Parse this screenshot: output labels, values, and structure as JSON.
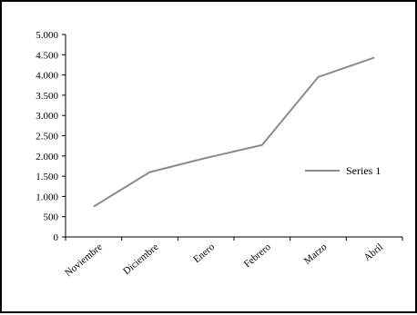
{
  "chart_data": {
    "type": "line",
    "categories": [
      "Noviembre",
      "Diciembre",
      "Enero",
      "Febrero",
      "Marzo",
      "Abril"
    ],
    "series": [
      {
        "name": "Series 1",
        "values": [
          750,
          1600,
          1950,
          2270,
          3950,
          4430
        ],
        "color": "#8c8c8c"
      }
    ],
    "ylim": [
      0,
      5000
    ],
    "yticks": [
      0,
      500,
      1000,
      1500,
      2000,
      2500,
      3000,
      3500,
      4000,
      4500,
      5000
    ],
    "ytick_labels": [
      "0",
      "500",
      "1.000",
      "1.500",
      "2.000",
      "2.500",
      "3.000",
      "3.500",
      "4.000",
      "4.500",
      "5.000"
    ],
    "grid": false,
    "legend_position": "right"
  }
}
